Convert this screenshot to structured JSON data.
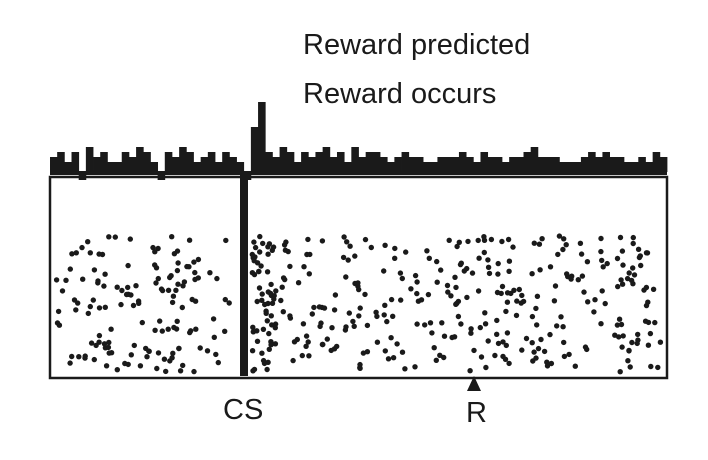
{
  "labels": {
    "reward_predicted": "Reward predicted",
    "reward_occurs": "Reward occurs",
    "cs": "CS",
    "r": "R"
  },
  "colors": {
    "ink": "#1a1a1a",
    "background": "#ffffff"
  },
  "histogram": {
    "num_bins": 86,
    "baseline_value": 0,
    "peak_bin_index": 29,
    "values": [
      3,
      4,
      2,
      4,
      -1,
      5,
      3,
      4,
      2,
      2,
      4,
      3,
      5,
      4,
      2,
      -1,
      4,
      3,
      5,
      4,
      2,
      3,
      4,
      2,
      4,
      3,
      2,
      -1,
      9,
      14,
      4,
      3,
      5,
      4,
      2,
      4,
      3,
      4,
      5,
      3,
      4,
      2,
      5,
      3,
      4,
      4,
      3,
      2,
      3,
      4,
      3,
      3,
      2,
      2,
      3,
      3,
      3,
      4,
      3,
      2,
      4,
      3,
      3,
      2,
      3,
      3,
      4,
      5,
      3,
      3,
      3,
      2,
      2,
      2,
      3,
      4,
      3,
      4,
      3,
      3,
      2,
      2,
      3,
      2,
      4,
      3
    ]
  },
  "raster": {
    "cs_event_fraction": 0.32,
    "reward_event_fraction": 0.68,
    "num_trials": 16
  }
}
